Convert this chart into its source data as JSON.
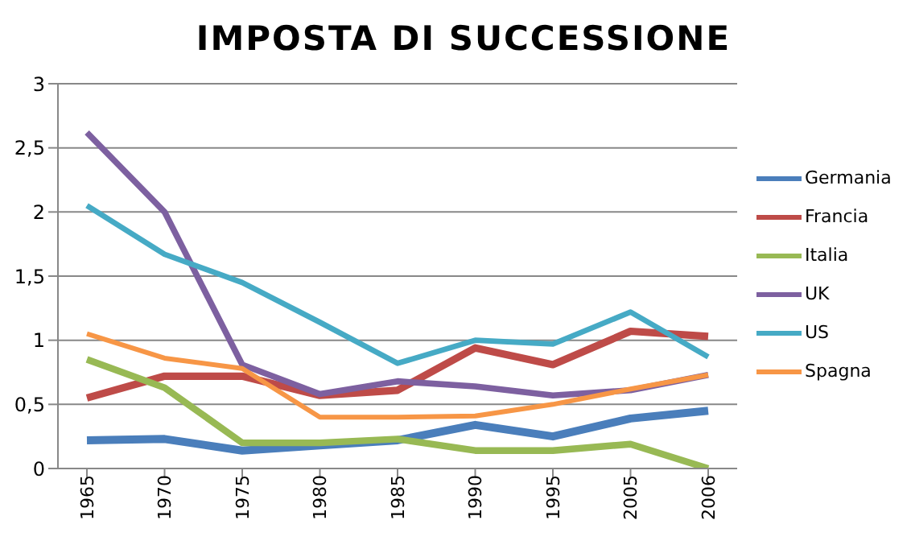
{
  "chart_data": {
    "type": "line",
    "title": "IMPOSTA DI SUCCESSIONE",
    "categories": [
      "1965",
      "1970",
      "1975",
      "1980",
      "1985",
      "1990",
      "1995",
      "2005",
      "2006"
    ],
    "series": [
      {
        "name": "Germania",
        "color": "#4a7ebb",
        "values": [
          0.22,
          0.23,
          0.14,
          0.18,
          0.22,
          0.34,
          0.25,
          0.39,
          0.45
        ]
      },
      {
        "name": "Francia",
        "color": "#be4b48",
        "values": [
          0.55,
          0.72,
          0.72,
          0.57,
          0.61,
          0.94,
          0.81,
          1.07,
          1.03
        ]
      },
      {
        "name": "Italia",
        "color": "#98b954",
        "values": [
          0.85,
          0.63,
          0.2,
          0.2,
          0.23,
          0.14,
          0.14,
          0.19,
          0
        ]
      },
      {
        "name": "UK",
        "color": "#7d60a0",
        "values": [
          2.62,
          2.0,
          0.81,
          0.58,
          0.68,
          0.64,
          0.57,
          0.61,
          0.73
        ]
      },
      {
        "name": "US",
        "color": "#46aac5",
        "values": [
          2.05,
          1.67,
          1.45,
          1.14,
          0.82,
          1.0,
          0.97,
          1.22,
          0.87
        ]
      },
      {
        "name": "Spagna",
        "color": "#f79646",
        "values": [
          1.05,
          0.86,
          0.78,
          0.4,
          0.4,
          0.41,
          0.5,
          0.62,
          0.73
        ]
      }
    ],
    "ylim": [
      0,
      3
    ],
    "yticks": [
      0,
      {
        "value": 0.5,
        "label": "0,5"
      },
      1,
      {
        "value": 1.5,
        "label": "1,5"
      },
      2,
      {
        "value": 2.5,
        "label": "2,5"
      },
      3
    ],
    "grid": "y",
    "legend": "right",
    "marker": "none",
    "line_style": "solid"
  }
}
